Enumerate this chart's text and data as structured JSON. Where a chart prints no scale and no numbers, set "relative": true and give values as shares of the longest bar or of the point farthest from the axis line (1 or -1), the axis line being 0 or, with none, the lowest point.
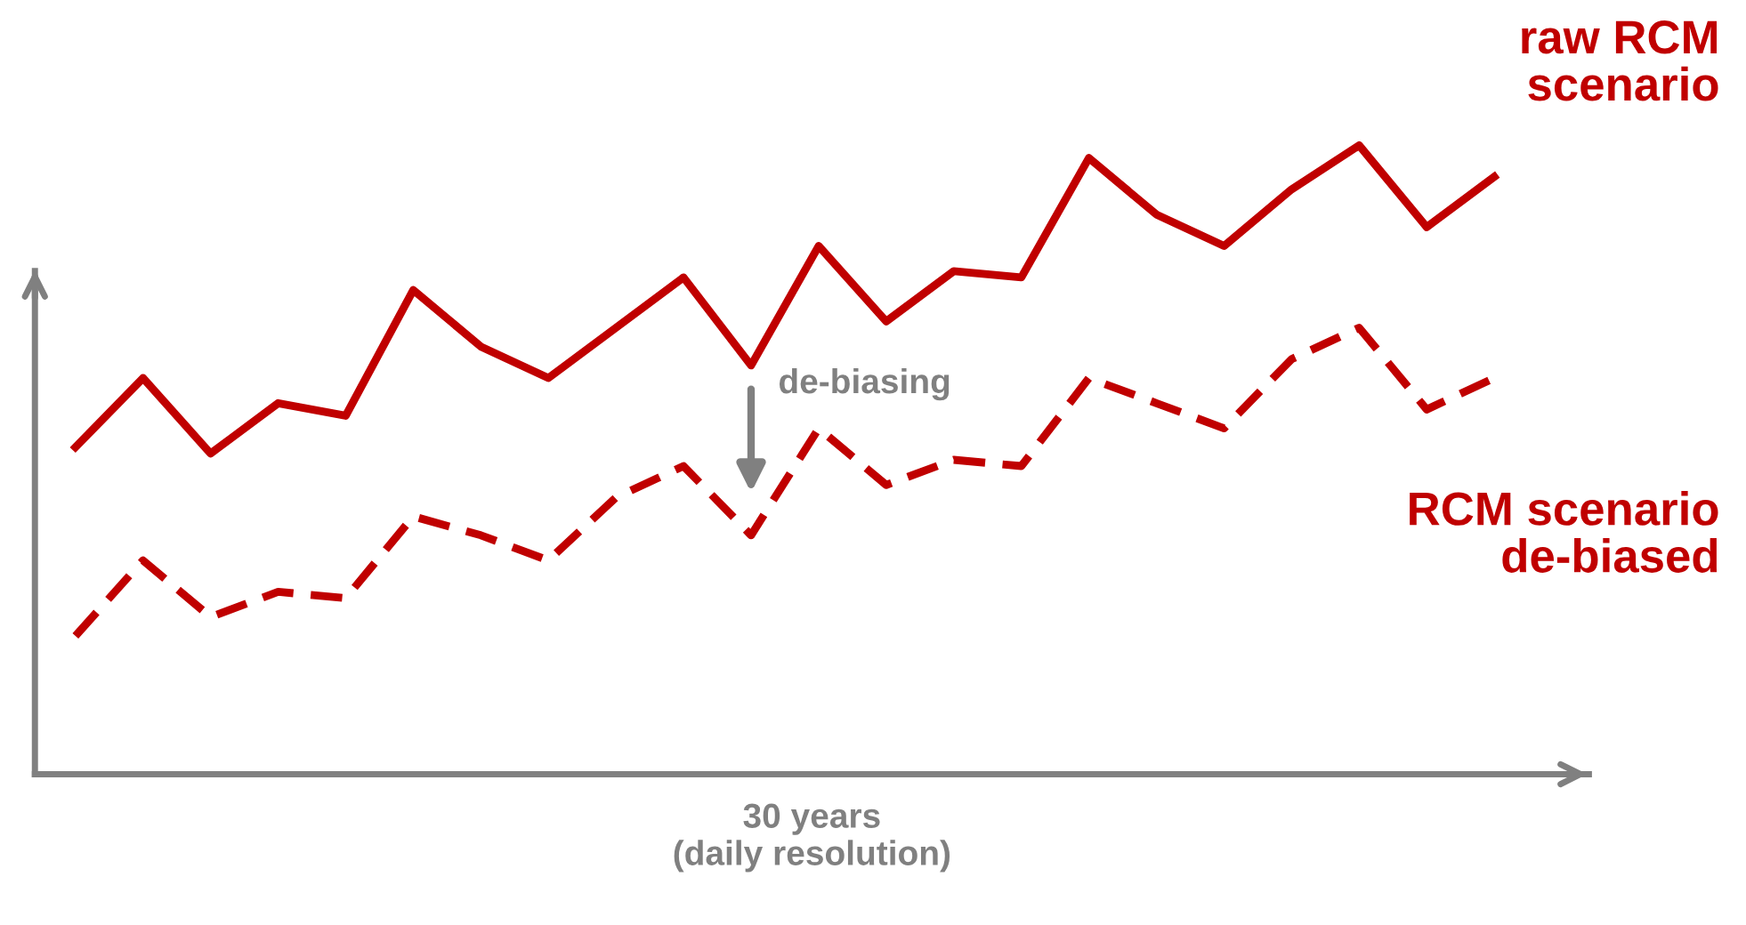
{
  "chart_data": {
    "type": "line",
    "relative": true,
    "xlabel": "30 years\n(daily resolution)",
    "legend": false,
    "marker": "none",
    "annotations": [
      "de-biasing"
    ],
    "categories": [
      null,
      null,
      null,
      null,
      null,
      null,
      null,
      null,
      null,
      null,
      null,
      null,
      null,
      null,
      null,
      null,
      null,
      null,
      null,
      null,
      null,
      null
    ],
    "series": [
      {
        "name": "raw RCM\nscenario",
        "color": "#c00000",
        "line_style": "solid",
        "values": [
          0.52,
          0.63,
          0.51,
          0.59,
          0.57,
          0.77,
          0.68,
          0.63,
          0.71,
          0.79,
          0.65,
          0.84,
          0.72,
          0.8,
          0.79,
          0.98,
          0.89,
          0.84,
          0.93,
          1.0,
          0.87,
          0.95
        ]
      },
      {
        "name": "RCM scenario\nde-biased",
        "color": "#c00000",
        "line_style": "dashed",
        "values": [
          0.22,
          0.34,
          0.25,
          0.29,
          0.28,
          0.41,
          0.38,
          0.34,
          0.44,
          0.49,
          0.38,
          0.55,
          0.46,
          0.5,
          0.49,
          0.63,
          0.59,
          0.55,
          0.66,
          0.71,
          0.58,
          0.63
        ]
      }
    ]
  }
}
